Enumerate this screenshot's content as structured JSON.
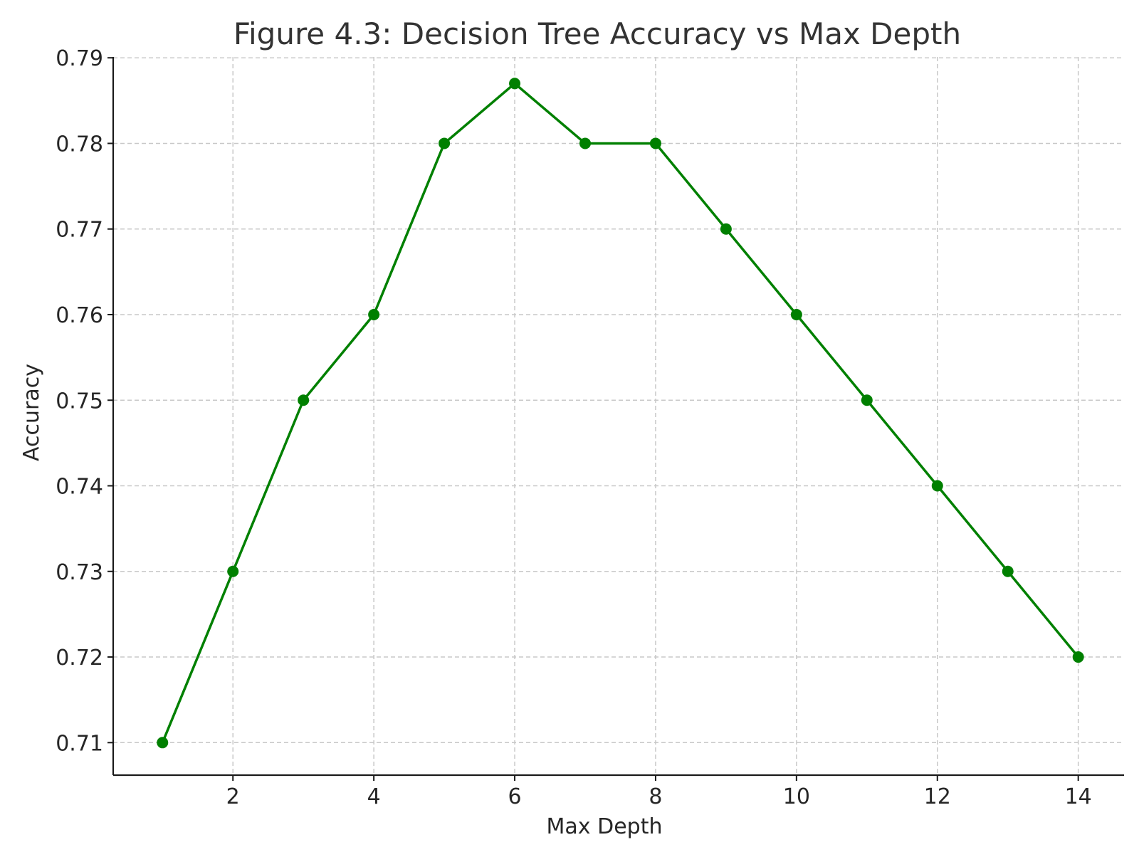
{
  "chart_data": {
    "type": "line",
    "title": "Figure 4.3: Decision Tree Accuracy vs Max Depth",
    "xlabel": "Max Depth",
    "ylabel": "Accuracy",
    "xlim": [
      0.3,
      14.65
    ],
    "ylim": [
      0.7062,
      0.7901
    ],
    "xticks": [
      2,
      4,
      6,
      8,
      10,
      12,
      14
    ],
    "xtick_labels": [
      "2",
      "4",
      "6",
      "8",
      "10",
      "12",
      "14"
    ],
    "yticks": [
      0.71,
      0.72,
      0.73,
      0.74,
      0.75,
      0.76,
      0.77,
      0.78,
      0.79
    ],
    "ytick_labels": [
      "0.71",
      "0.72",
      "0.73",
      "0.74",
      "0.75",
      "0.76",
      "0.77",
      "0.78",
      "0.79"
    ],
    "grid": true,
    "x": [
      1,
      2,
      3,
      4,
      5,
      6,
      7,
      8,
      9,
      10,
      11,
      12,
      13,
      14
    ],
    "series": [
      {
        "values": [
          0.71,
          0.73,
          0.75,
          0.76,
          0.78,
          0.787,
          0.78,
          0.78,
          0.77,
          0.76,
          0.75,
          0.74,
          0.73,
          0.72
        ],
        "color": "#008000",
        "marker": "circle"
      }
    ]
  }
}
